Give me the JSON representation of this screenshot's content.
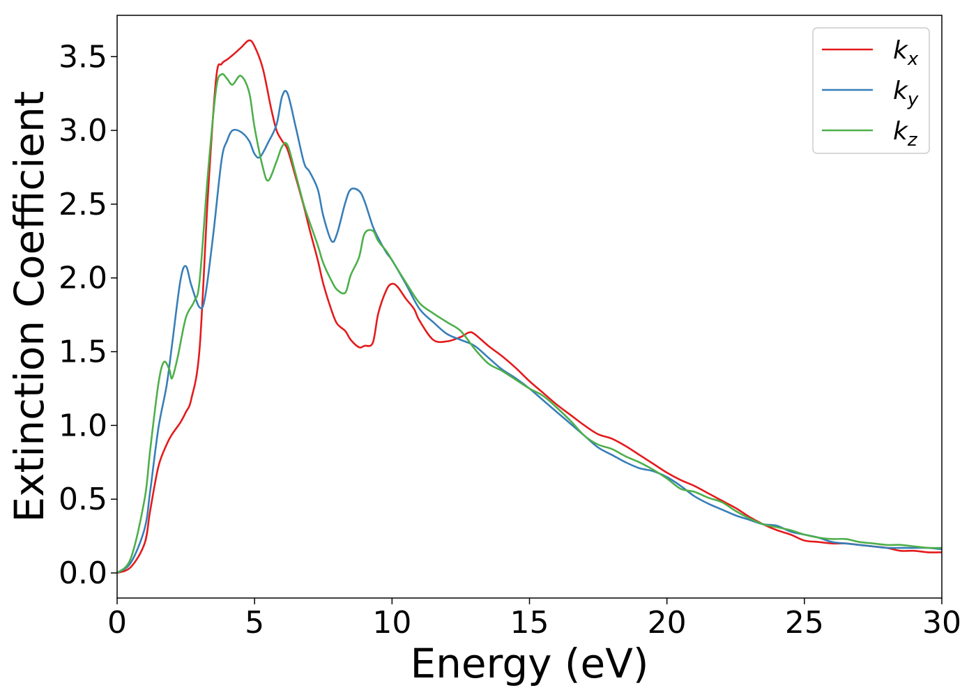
{
  "chart_data": {
    "type": "line",
    "xlabel": "Energy (eV)",
    "ylabel": "Extinction Coefficient",
    "xlim": [
      0,
      30
    ],
    "ylim": [
      -0.17,
      3.78
    ],
    "xticks": [
      0,
      5,
      10,
      15,
      20,
      25,
      30
    ],
    "yticks": [
      0.0,
      0.5,
      1.0,
      1.5,
      2.0,
      2.5,
      3.0,
      3.5
    ],
    "xtick_labels": [
      "0",
      "5",
      "10",
      "15",
      "20",
      "25",
      "30"
    ],
    "ytick_labels": [
      "0.0",
      "0.5",
      "1.0",
      "1.5",
      "2.0",
      "2.5",
      "3.0",
      "3.5"
    ],
    "grid": false,
    "legend_position": "top-right",
    "series": [
      {
        "name": "k",
        "subscript": "x",
        "color": "#e41a1c",
        "x": [
          0,
          0.5,
          1.0,
          1.2,
          1.5,
          1.8,
          2.0,
          2.3,
          2.5,
          2.7,
          3.0,
          3.3,
          3.6,
          3.8,
          4.0,
          4.2,
          4.5,
          4.8,
          5.0,
          5.3,
          5.6,
          5.8,
          6.0,
          6.2,
          6.5,
          6.8,
          7.0,
          7.3,
          7.5,
          7.8,
          8.0,
          8.3,
          8.5,
          8.8,
          9.0,
          9.3,
          9.5,
          9.8,
          10.0,
          10.2,
          10.5,
          10.8,
          11.0,
          11.5,
          12.0,
          12.5,
          12.8,
          13.0,
          13.5,
          14.0,
          14.5,
          15.0,
          15.5,
          16.0,
          16.5,
          17.0,
          17.5,
          18.0,
          18.5,
          19.0,
          19.5,
          20.0,
          20.5,
          21.0,
          21.5,
          22.0,
          22.5,
          23.0,
          23.5,
          24.0,
          24.5,
          25.0,
          25.5,
          26.0,
          26.5,
          27.0,
          27.5,
          28.0,
          28.5,
          29.0,
          29.5,
          30.0
        ],
        "y": [
          0.0,
          0.04,
          0.2,
          0.42,
          0.72,
          0.87,
          0.94,
          1.02,
          1.09,
          1.18,
          1.52,
          2.55,
          3.35,
          3.45,
          3.48,
          3.51,
          3.56,
          3.61,
          3.57,
          3.42,
          3.15,
          3.0,
          2.93,
          2.87,
          2.68,
          2.48,
          2.33,
          2.12,
          1.96,
          1.78,
          1.69,
          1.64,
          1.58,
          1.53,
          1.54,
          1.56,
          1.76,
          1.92,
          1.96,
          1.94,
          1.86,
          1.79,
          1.71,
          1.58,
          1.57,
          1.6,
          1.63,
          1.62,
          1.54,
          1.47,
          1.39,
          1.3,
          1.22,
          1.14,
          1.07,
          1.0,
          0.94,
          0.91,
          0.86,
          0.8,
          0.74,
          0.68,
          0.63,
          0.59,
          0.54,
          0.49,
          0.44,
          0.38,
          0.33,
          0.29,
          0.26,
          0.22,
          0.21,
          0.2,
          0.2,
          0.19,
          0.18,
          0.17,
          0.15,
          0.15,
          0.14,
          0.14
        ]
      },
      {
        "name": "k",
        "subscript": "y",
        "color": "#377eb8",
        "x": [
          0,
          0.5,
          1.0,
          1.2,
          1.5,
          1.8,
          2.0,
          2.3,
          2.5,
          2.7,
          3.0,
          3.2,
          3.5,
          3.8,
          4.0,
          4.2,
          4.5,
          4.8,
          5.0,
          5.2,
          5.5,
          5.8,
          6.0,
          6.2,
          6.5,
          6.8,
          7.0,
          7.3,
          7.5,
          7.8,
          8.0,
          8.3,
          8.5,
          8.8,
          9.0,
          9.3,
          9.5,
          9.8,
          10.0,
          10.5,
          11.0,
          11.5,
          12.0,
          12.5,
          13.0,
          13.5,
          14.0,
          14.5,
          15.0,
          15.5,
          16.0,
          16.5,
          17.0,
          17.5,
          18.0,
          18.5,
          19.0,
          19.5,
          20.0,
          20.5,
          21.0,
          21.5,
          22.0,
          22.5,
          23.0,
          23.5,
          24.0,
          24.5,
          25.0,
          25.5,
          26.0,
          26.5,
          27.0,
          27.5,
          28.0,
          28.5,
          29.0,
          29.5,
          30.0
        ],
        "y": [
          0.0,
          0.07,
          0.3,
          0.55,
          0.98,
          1.27,
          1.55,
          1.98,
          2.08,
          1.95,
          1.8,
          1.87,
          2.3,
          2.8,
          2.93,
          3.0,
          2.99,
          2.93,
          2.84,
          2.82,
          2.92,
          3.04,
          3.23,
          3.25,
          3.02,
          2.78,
          2.72,
          2.6,
          2.42,
          2.25,
          2.3,
          2.51,
          2.6,
          2.59,
          2.52,
          2.35,
          2.27,
          2.17,
          2.12,
          1.96,
          1.79,
          1.7,
          1.62,
          1.58,
          1.54,
          1.46,
          1.38,
          1.32,
          1.25,
          1.17,
          1.09,
          1.01,
          0.93,
          0.85,
          0.8,
          0.75,
          0.71,
          0.69,
          0.65,
          0.59,
          0.52,
          0.47,
          0.43,
          0.39,
          0.36,
          0.33,
          0.32,
          0.28,
          0.26,
          0.24,
          0.21,
          0.2,
          0.19,
          0.18,
          0.17,
          0.17,
          0.17,
          0.17,
          0.16
        ]
      },
      {
        "name": "k",
        "subscript": "z",
        "color": "#4daf4a",
        "x": [
          0,
          0.5,
          1.0,
          1.2,
          1.5,
          1.7,
          1.9,
          2.0,
          2.2,
          2.5,
          2.8,
          3.0,
          3.3,
          3.6,
          3.8,
          4.0,
          4.2,
          4.5,
          4.8,
          5.0,
          5.3,
          5.5,
          5.8,
          6.0,
          6.2,
          6.5,
          6.8,
          7.0,
          7.3,
          7.5,
          7.8,
          8.0,
          8.3,
          8.5,
          8.8,
          9.0,
          9.3,
          9.5,
          9.8,
          10.0,
          10.5,
          11.0,
          11.5,
          12.0,
          12.5,
          13.0,
          13.5,
          14.0,
          14.5,
          15.0,
          15.5,
          16.0,
          16.5,
          17.0,
          17.5,
          18.0,
          18.5,
          19.0,
          19.5,
          20.0,
          20.5,
          21.0,
          21.5,
          22.0,
          22.5,
          23.0,
          23.5,
          24.0,
          24.5,
          25.0,
          25.5,
          26.0,
          26.5,
          27.0,
          27.5,
          28.0,
          28.5,
          29.0,
          29.5,
          30.0
        ],
        "y": [
          0.0,
          0.1,
          0.5,
          0.83,
          1.28,
          1.43,
          1.38,
          1.32,
          1.46,
          1.73,
          1.84,
          1.98,
          2.7,
          3.28,
          3.38,
          3.35,
          3.31,
          3.37,
          3.26,
          3.02,
          2.75,
          2.66,
          2.79,
          2.89,
          2.9,
          2.7,
          2.49,
          2.38,
          2.22,
          2.1,
          1.98,
          1.92,
          1.9,
          2.02,
          2.14,
          2.3,
          2.32,
          2.25,
          2.18,
          2.12,
          1.97,
          1.83,
          1.76,
          1.7,
          1.64,
          1.52,
          1.42,
          1.37,
          1.31,
          1.25,
          1.2,
          1.12,
          1.03,
          0.93,
          0.87,
          0.84,
          0.79,
          0.75,
          0.7,
          0.64,
          0.57,
          0.55,
          0.51,
          0.48,
          0.42,
          0.37,
          0.33,
          0.31,
          0.29,
          0.26,
          0.24,
          0.23,
          0.23,
          0.21,
          0.2,
          0.19,
          0.19,
          0.18,
          0.17,
          0.17
        ]
      }
    ]
  }
}
